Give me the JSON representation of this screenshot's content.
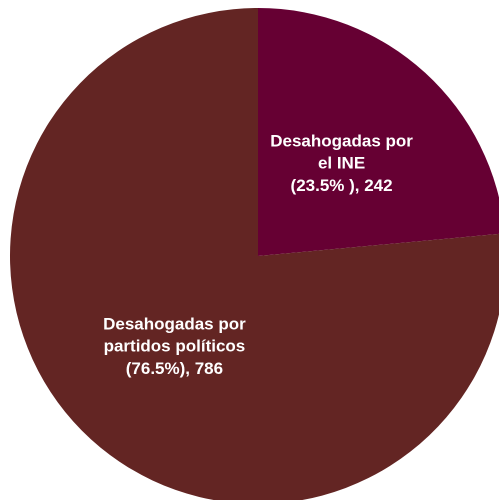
{
  "chart_data": {
    "type": "pie",
    "categories": [
      "Desahogadas por el INE",
      "Desahogadas por partidos políticos"
    ],
    "values": [
      242,
      786
    ],
    "value_labels": [
      "(23.5% ), 242",
      "(76.5%), 786"
    ],
    "colors": [
      "#660033",
      "#632523"
    ]
  }
}
